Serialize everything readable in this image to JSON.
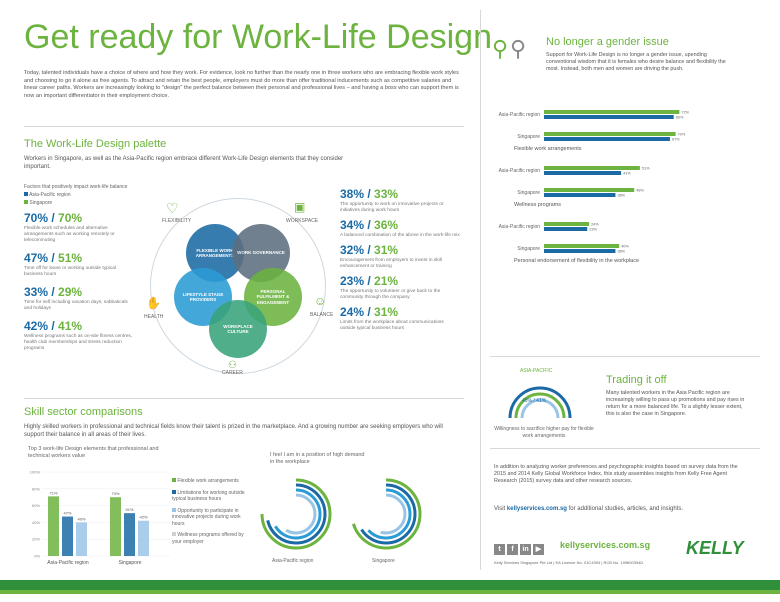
{
  "header": {
    "title": "Get ready for Work-Life Design",
    "intro": "Today, talented individuals have a choice of where and how they work. For evidence, look no further than the nearly one in three workers who are embracing flexible work styles and choosing to go it alone as free agents. To attract and retain the best people, employers must do more than offer traditional inducements such as competitive salaries and linear career paths. Workers are increasingly looking to \"design\" the perfect balance between their personal and professional lives – and having a boss who can support them is now an important differentiator in their employment choice."
  },
  "palette": {
    "heading": "The Work-Life Design palette",
    "intro": "Workers in Singapore, as well as the Asia-Pacific region embrace different Work-Life Design elements that they consider important.",
    "legend_title": "Factors that positively impact work-life balance",
    "legend": [
      "Asia-Pacific region",
      "Singapore"
    ],
    "left_stats": [
      {
        "ap": "70%",
        "sg": "70%",
        "desc": "Flexible work schedules and alternative arrangements such as working remotely or telecommuting"
      },
      {
        "ap": "47%",
        "sg": "51%",
        "desc": "Time off for leave or working outside typical business hours"
      },
      {
        "ap": "33%",
        "sg": "29%",
        "desc": "Time for self including vacation days, sabbaticals and holidays"
      },
      {
        "ap": "42%",
        "sg": "41%",
        "desc": "Wellness programs such as on-site fitness centres, health club memberships and stress reduction programs"
      }
    ],
    "right_stats": [
      {
        "ap": "38%",
        "sg": "33%",
        "desc": "The opportunity to work on innovative projects or initiatives during work hours"
      },
      {
        "ap": "34%",
        "sg": "36%",
        "desc": "A balanced combination of the above in the work-life mix"
      },
      {
        "ap": "32%",
        "sg": "31%",
        "desc": "Encouragement from employers to invest in skill enhancement or training"
      },
      {
        "ap": "23%",
        "sg": "21%",
        "desc": "The opportunity to volunteer or give back to the community through the company"
      },
      {
        "ap": "24%",
        "sg": "31%",
        "desc": "Limits from the workplace about communications outside typical business hours"
      }
    ],
    "icon_labels": [
      "FLEXIBILITY",
      "WORKSPACE",
      "HEALTH",
      "BALANCE",
      "CAREER"
    ],
    "circles": [
      "FLEXIBLE WORK ARRANGEMENTS",
      "WORK GOVERNANCE",
      "LIFESTYLE STAGE PROVIDERS",
      "PERSONAL FULFILMENT & ENGAGEMENT",
      "WORKPLACE CULTURE"
    ]
  },
  "skills": {
    "heading": "Skill sector comparisons",
    "intro": "Highly skilled workers in professional and technical fields know their talent is prized in the marketplace. And a growing number are seeking employers who will support their balance in all areas of their lives.",
    "chart_title": "Top 3 work-life Design elements that professional and technical workers value",
    "legend": [
      "Flexible work arrangements",
      "Limitations for working outside typical business hours",
      "Opportunity to participate in innovative projects during work hours",
      "Wellness programs offered by your employer"
    ],
    "donut_title": "I feel I am in a position of high demand in the workplace"
  },
  "gender": {
    "heading": "No longer a gender issue",
    "text": "Support for Work-Life Design is no longer a gender issue, upending conventional wisdom that it is females who desire balance and flexibility the most. Instead, both men and women are driving the push.",
    "group_labels": [
      "Flexible work arrangements",
      "Wellness programs",
      "Personal endorsement of flexibility in the workplace"
    ],
    "region_labels": [
      "Asia-Pacific region",
      "Singapore"
    ]
  },
  "trading": {
    "heading": "Trading it off",
    "text": "Many talented workers in the Asia Pacific region are increasingly willing to pass up promotions and pay rises in return for a more balanced life. To a slightly lesser extent, this is also the case in Singapore.",
    "donut_caption": "Willingness to sacrifice higher pay for flexible work arrangements",
    "donut_labels": [
      "ASIA-PACIFIC",
      "SINGAPORE"
    ],
    "donut_center": "45% / 41%"
  },
  "about": {
    "text": "In addition to analyzing worker preferences and psychographic insights based on survey data from the 2015 and 2014 Kelly Global Workforce Index, this study assembles insights from Kelly Free Agent Research (2015) survey data and other research sources.",
    "visit_prefix": "Visit ",
    "visit_link": "kellyservices.com.sg",
    "visit_suffix": " for additional studies, articles, and insights.",
    "site": "kellyservices.com.sg",
    "brand": "KELLY",
    "fine_print": "Kelly Services Singapore Pte Ltd  |  EA Licence No. 01C4394  |  RCB No. 199600394D",
    "social": [
      "t",
      "f",
      "in",
      "▶"
    ]
  },
  "chart_data": [
    {
      "type": "bar",
      "title": "Top 3 work-life Design elements that professional and technical workers value",
      "categories": [
        "Asia-Pacific region",
        "Singapore"
      ],
      "series": [
        {
          "name": "Flexible work arrangements",
          "values": [
            71,
            70
          ]
        },
        {
          "name": "Limitations for working outside typical business hours",
          "values": [
            47,
            51
          ]
        },
        {
          "name": "Opportunity to participate in innovative projects during work hours",
          "values": [
            40,
            42
          ]
        }
      ],
      "ylim": [
        0,
        100
      ],
      "ylabel": "",
      "xlabel": "",
      "yticks": [
        "0%",
        "20%",
        "40%",
        "60%",
        "80%",
        "100%"
      ],
      "colors": {
        "flex": "#6cb33f",
        "limits": "#1b6aa5",
        "innov": "#9ac4e6"
      }
    },
    {
      "type": "bar",
      "title": "No longer a gender issue",
      "orientation": "horizontal",
      "groups": [
        "Flexible work arrangements",
        "Wellness programs",
        "Personal endorsement of flexibility in the workplace"
      ],
      "categories": [
        "Asia-Pacific region",
        "Singapore"
      ],
      "series": [
        {
          "name": "Male",
          "values": [
            [
              69,
              67
            ],
            [
              41,
              38
            ],
            [
              23,
              38
            ]
          ]
        },
        {
          "name": "Female",
          "values": [
            [
              72,
              70
            ],
            [
              51,
              48
            ],
            [
              24,
              40
            ]
          ]
        }
      ],
      "xlim": [
        0,
        100
      ],
      "colors": {
        "male": "#1b6aa5",
        "female": "#6cb33f"
      }
    }
  ]
}
